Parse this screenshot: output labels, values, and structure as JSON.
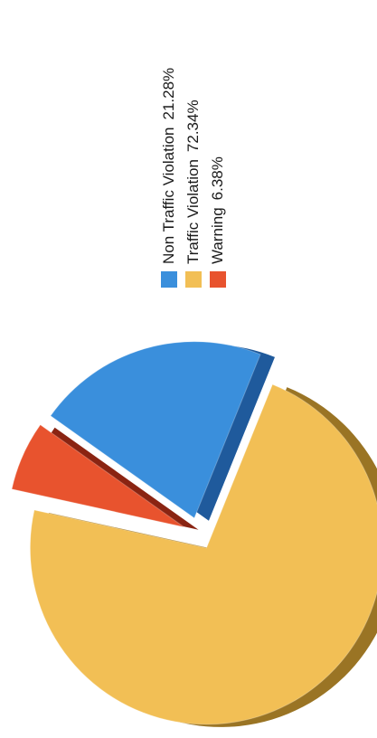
{
  "chart_data": {
    "type": "pie",
    "exploded": true,
    "three_d": true,
    "legend": "right",
    "slices": [
      {
        "label": "Non Traffic Violation",
        "value": 21.28,
        "value_label": "21.28%",
        "color": "#3a8fdc",
        "side_color": "#1f5a9c"
      },
      {
        "label": "Traffic Violation",
        "value": 72.34,
        "value_label": "72.34%",
        "color": "#f2bf55",
        "side_color": "#9a7424"
      },
      {
        "label": "Warning",
        "value": 6.38,
        "value_label": "6.38%",
        "color": "#e8532e",
        "side_color": "#8a2412"
      }
    ]
  }
}
